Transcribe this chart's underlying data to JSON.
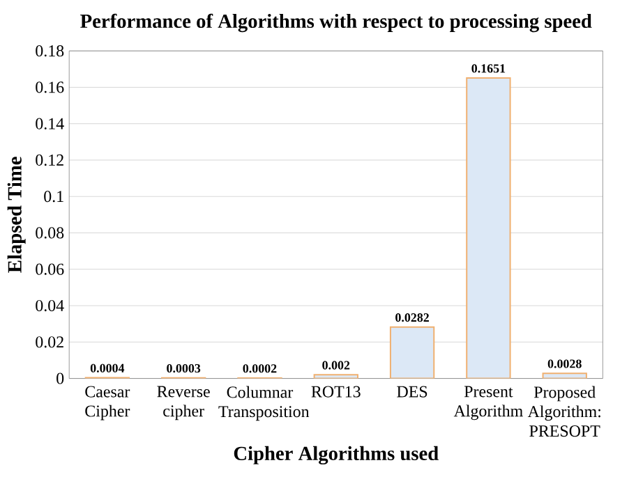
{
  "chart_data": {
    "type": "bar",
    "title": "Performance of Algorithms with respect to processing speed",
    "xlabel": "Cipher Algorithms used",
    "ylabel": "Elapsed Time",
    "categories": [
      "Caesar Cipher",
      "Reverse cipher",
      "Columnar Transposition",
      "ROT13",
      "DES",
      "Present Algorithm",
      "Proposed Algorithm: PRESOPT"
    ],
    "values": [
      0.0004,
      0.0003,
      0.0002,
      0.002,
      0.0282,
      0.1651,
      0.0028
    ],
    "color": "#dce8f6",
    "data_labels": true,
    "grid": "y",
    "ylim": [
      0,
      0.18
    ],
    "yticks": [
      0,
      0.02,
      0.04,
      0.06,
      0.08,
      0.1,
      0.12,
      0.14,
      0.16,
      0.18
    ]
  }
}
